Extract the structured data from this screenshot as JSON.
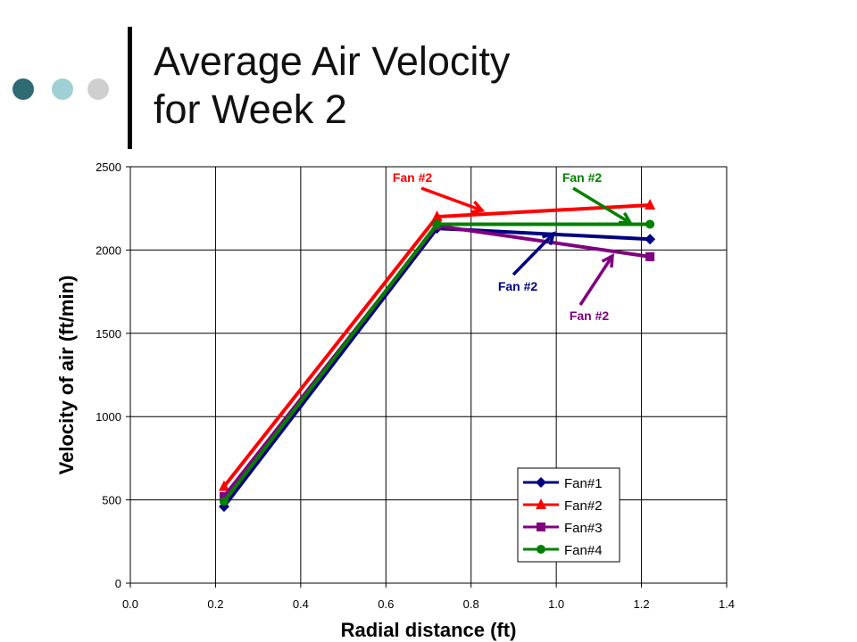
{
  "slide": {
    "title_line1": "Average Air Velocity",
    "title_line2": "for Week 2",
    "decor_dot_colors": [
      "#2e6b73",
      "#9fd0d6",
      "#cfcfcf"
    ]
  },
  "chart_data": {
    "type": "line",
    "xlabel": "Radial distance (ft)",
    "ylabel": "Velocity of air (ft/min)",
    "xlim": [
      0,
      1.4
    ],
    "ylim": [
      0,
      2500
    ],
    "x_ticks": [
      "0.0",
      "0.2",
      "0.4",
      "0.6",
      "0.8",
      "1.0",
      "1.2",
      "1.4"
    ],
    "y_ticks": [
      "0",
      "500",
      "1000",
      "1500",
      "2000",
      "2500"
    ],
    "grid": true,
    "legend_position": "bottom-right",
    "series": [
      {
        "name": "Fan#1",
        "color": "#000080",
        "marker": "diamond",
        "x": [
          0.22,
          0.72,
          1.22
        ],
        "y": [
          460,
          2130,
          2065
        ]
      },
      {
        "name": "Fan#2",
        "color": "#ff0000",
        "marker": "triangle",
        "x": [
          0.22,
          0.72,
          1.22
        ],
        "y": [
          580,
          2200,
          2270
        ]
      },
      {
        "name": "Fan#3",
        "color": "#800080",
        "marker": "square",
        "x": [
          0.22,
          0.72,
          1.22
        ],
        "y": [
          520,
          2145,
          1960
        ]
      },
      {
        "name": "Fan#4",
        "color": "#008000",
        "marker": "circle",
        "x": [
          0.22,
          0.72,
          1.22
        ],
        "y": [
          490,
          2155,
          2155
        ]
      }
    ],
    "annotations": [
      {
        "text": "Fan #2",
        "color": "#ff0000"
      },
      {
        "text": "Fan #2",
        "color": "#008000"
      },
      {
        "text": "Fan #2",
        "color": "#000080"
      },
      {
        "text": "Fan #2",
        "color": "#800080"
      }
    ]
  }
}
